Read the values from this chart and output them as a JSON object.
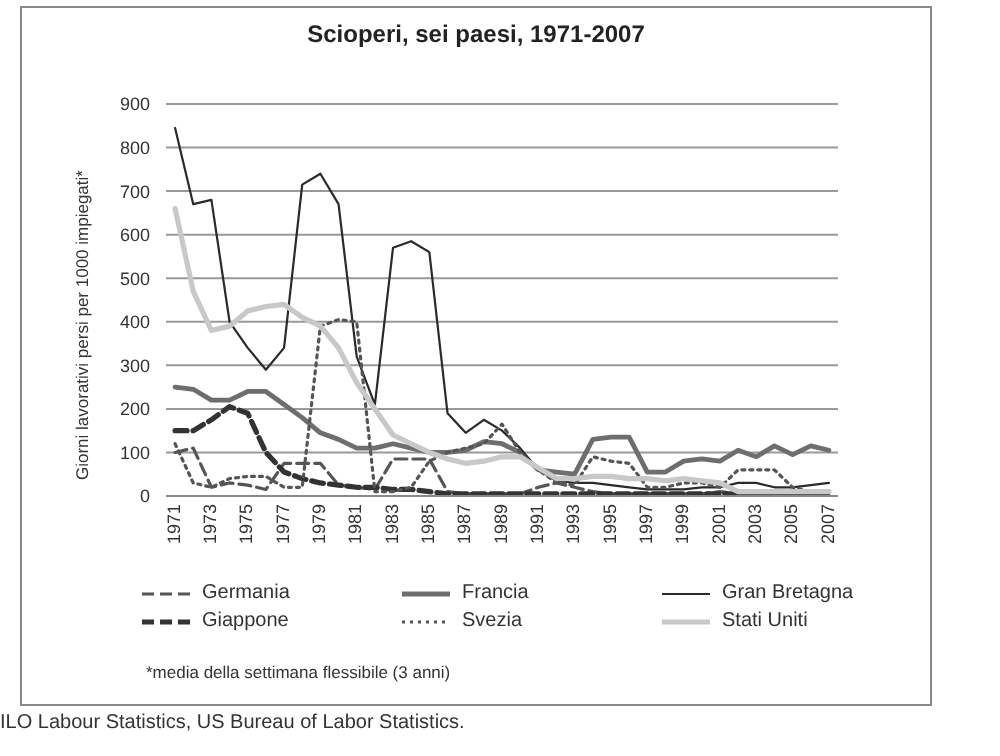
{
  "chart_data": {
    "type": "line",
    "title": "Scioperi, sei paesi, 1971-2007",
    "ylabel": "Giorni lavorativi persi per 1000 impiegati*",
    "x": [
      1971,
      1972,
      1973,
      1974,
      1975,
      1976,
      1977,
      1978,
      1979,
      1980,
      1981,
      1982,
      1983,
      1984,
      1985,
      1986,
      1987,
      1988,
      1989,
      1990,
      1991,
      1992,
      1993,
      1994,
      1995,
      1996,
      1997,
      1998,
      1999,
      2000,
      2001,
      2002,
      2003,
      2004,
      2005,
      2006,
      2007
    ],
    "xlim": [
      1970.5,
      2007.5
    ],
    "xticks": [
      1971,
      1973,
      1975,
      1977,
      1979,
      1981,
      1983,
      1985,
      1987,
      1989,
      1991,
      1993,
      1995,
      1997,
      1999,
      2001,
      2003,
      2005,
      2007
    ],
    "ylim": [
      0,
      900
    ],
    "yticks": [
      0,
      100,
      200,
      300,
      400,
      500,
      600,
      700,
      800,
      900
    ],
    "grid": "y",
    "legend": "bottom",
    "marker": "none",
    "series": [
      {
        "name": "Germania",
        "color": "#555555",
        "line_style": "dashed",
        "values": [
          100,
          110,
          20,
          30,
          25,
          15,
          75,
          75,
          75,
          25,
          20,
          15,
          85,
          85,
          85,
          10,
          5,
          5,
          5,
          5,
          20,
          30,
          20,
          10,
          5,
          5,
          5,
          5,
          5,
          5,
          10,
          5,
          5,
          5,
          5,
          5,
          5
        ]
      },
      {
        "name": "Francia",
        "color": "#6e6e6e",
        "line_style": "solid",
        "values": [
          250,
          245,
          220,
          220,
          240,
          240,
          210,
          180,
          145,
          130,
          110,
          110,
          120,
          110,
          100,
          100,
          105,
          125,
          120,
          100,
          60,
          55,
          50,
          130,
          135,
          135,
          55,
          55,
          80,
          85,
          80,
          105,
          90,
          115,
          95,
          115,
          105
        ]
      },
      {
        "name": "Gran Bretagna",
        "color": "#2a2a2a",
        "line_style": "solid",
        "values": [
          845,
          670,
          680,
          400,
          340,
          290,
          340,
          715,
          740,
          670,
          320,
          210,
          570,
          585,
          560,
          190,
          145,
          175,
          150,
          110,
          60,
          35,
          30,
          30,
          25,
          20,
          15,
          15,
          15,
          20,
          20,
          30,
          30,
          20,
          20,
          25,
          30
        ]
      },
      {
        "name": "Giappone",
        "color": "#333333",
        "line_style": "dashed",
        "values": [
          150,
          150,
          175,
          205,
          190,
          100,
          55,
          40,
          30,
          25,
          20,
          20,
          15,
          15,
          10,
          5,
          5,
          5,
          5,
          5,
          5,
          5,
          5,
          5,
          5,
          5,
          5,
          5,
          5,
          5,
          5,
          5,
          5,
          5,
          5,
          5,
          5
        ]
      },
      {
        "name": "Svezia",
        "color": "#555555",
        "line_style": "dotted",
        "values": [
          120,
          30,
          20,
          40,
          45,
          45,
          20,
          20,
          390,
          405,
          400,
          10,
          10,
          20,
          80,
          100,
          110,
          120,
          165,
          100,
          60,
          30,
          25,
          90,
          80,
          75,
          20,
          20,
          30,
          30,
          20,
          60,
          60,
          60,
          20,
          10,
          10
        ]
      },
      {
        "name": "Stati Uniti",
        "color": "#c8c8c8",
        "line_style": "solid",
        "values": [
          660,
          470,
          380,
          390,
          425,
          435,
          440,
          410,
          390,
          340,
          260,
          200,
          140,
          120,
          100,
          85,
          75,
          80,
          90,
          90,
          65,
          40,
          40,
          45,
          45,
          40,
          40,
          35,
          40,
          35,
          30,
          10,
          10,
          10,
          10,
          10,
          10
        ]
      }
    ],
    "annotations": [
      "*media della settimana flessibile (3 anni)",
      "ILO Labour Statistics, US Bureau of Labor Statistics."
    ]
  }
}
